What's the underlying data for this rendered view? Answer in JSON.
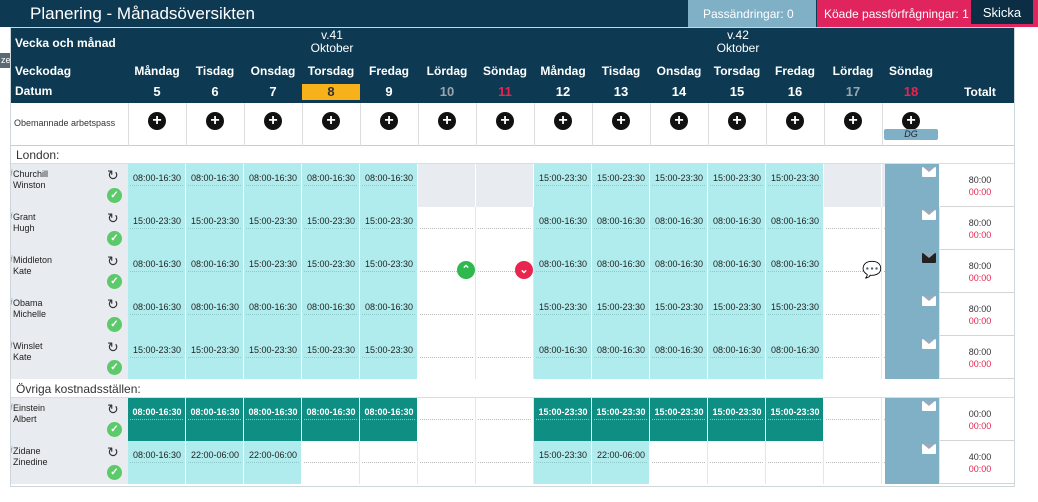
{
  "header": {
    "title": "Planering - Månadsöversikten",
    "pass_label": "Passändringar: 0",
    "koade_label": "Köade passförfrågningar: 1",
    "skicka_label": "Skicka",
    "side_tab": "ze"
  },
  "table": {
    "week_label": "Vecka och månad",
    "weekday_label": "Veckodag",
    "date_label": "Datum",
    "total_label": "Totalt",
    "weeks": [
      {
        "week": "v.41",
        "month": "Oktober"
      },
      {
        "week": "v.42",
        "month": "Oktober"
      }
    ],
    "days": [
      {
        "name": "Måndag",
        "date": "5"
      },
      {
        "name": "Tisdag",
        "date": "6"
      },
      {
        "name": "Onsdag",
        "date": "7"
      },
      {
        "name": "Torsdag",
        "date": "8"
      },
      {
        "name": "Fredag",
        "date": "9"
      },
      {
        "name": "Lördag",
        "date": "10"
      },
      {
        "name": "Söndag",
        "date": "11"
      },
      {
        "name": "Måndag",
        "date": "12"
      },
      {
        "name": "Tisdag",
        "date": "13"
      },
      {
        "name": "Onsdag",
        "date": "14"
      },
      {
        "name": "Torsdag",
        "date": "15"
      },
      {
        "name": "Fredag",
        "date": "16"
      },
      {
        "name": "Lördag",
        "date": "17"
      },
      {
        "name": "Söndag",
        "date": "18"
      }
    ],
    "unmanned_label": "Obemannade arbetspass",
    "dg_label": "DG",
    "sections": [
      {
        "label": "London:",
        "rows": [
          {
            "last": "Churchill",
            "first": "Winston",
            "total": "80:00",
            "total2": "00:00",
            "shifts": [
              "08:00-16:30",
              "08:00-16:30",
              "08:00-16:30",
              "08:00-16:30",
              "08:00-16:30",
              "",
              "",
              "15:00-23:30",
              "15:00-23:30",
              "15:00-23:30",
              "15:00-23:30",
              "15:00-23:30",
              "",
              ""
            ]
          },
          {
            "last": "Grant",
            "first": "Hugh",
            "total": "80:00",
            "total2": "00:00",
            "shifts": [
              "15:00-23:30",
              "15:00-23:30",
              "15:00-23:30",
              "15:00-23:30",
              "15:00-23:30",
              "",
              "",
              "08:00-16:30",
              "08:00-16:30",
              "08:00-16:30",
              "08:00-16:30",
              "08:00-16:30",
              "",
              ""
            ]
          },
          {
            "last": "Middleton",
            "first": "Kate",
            "total": "80:00",
            "total2": "00:00",
            "shifts": [
              "08:00-16:30",
              "08:00-16:30",
              "15:00-23:30",
              "15:00-23:30",
              "15:00-23:30",
              "",
              "",
              "08:00-16:30",
              "08:00-16:30",
              "08:00-16:30",
              "08:00-16:30",
              "08:00-16:30",
              "",
              ""
            ]
          },
          {
            "last": "Obama",
            "first": "Michelle",
            "total": "80:00",
            "total2": "00:00",
            "shifts": [
              "08:00-16:30",
              "08:00-16:30",
              "08:00-16:30",
              "08:00-16:30",
              "08:00-16:30",
              "",
              "",
              "15:00-23:30",
              "15:00-23:30",
              "15:00-23:30",
              "15:00-23:30",
              "15:00-23:30",
              "",
              ""
            ]
          },
          {
            "last": "Winslet",
            "first": "Kate",
            "total": "80:00",
            "total2": "00:00",
            "shifts": [
              "15:00-23:30",
              "15:00-23:30",
              "15:00-23:30",
              "15:00-23:30",
              "15:00-23:30",
              "",
              "",
              "08:00-16:30",
              "08:00-16:30",
              "08:00-16:30",
              "08:00-16:30",
              "08:00-16:30",
              "",
              ""
            ]
          }
        ]
      },
      {
        "label": "Övriga kostnadsställen:",
        "rows": [
          {
            "last": "Einstein",
            "first": "Albert",
            "total": "00:00",
            "total2": "00:00",
            "shifts": [
              "08:00-16:30",
              "08:00-16:30",
              "08:00-16:30",
              "08:00-16:30",
              "08:00-16:30",
              "",
              "",
              "15:00-23:30",
              "15:00-23:30",
              "15:00-23:30",
              "15:00-23:30",
              "15:00-23:30",
              "",
              ""
            ]
          },
          {
            "last": "Zidane",
            "first": "Zinedine",
            "total": "40:00",
            "total2": "00:00",
            "shifts": [
              "08:00-16:30",
              "22:00-06:00",
              "22:00-06:00",
              "",
              "",
              "",
              "",
              "15:00-23:30",
              "22:00-06:00",
              "",
              "",
              "",
              "",
              ""
            ]
          }
        ]
      }
    ]
  }
}
